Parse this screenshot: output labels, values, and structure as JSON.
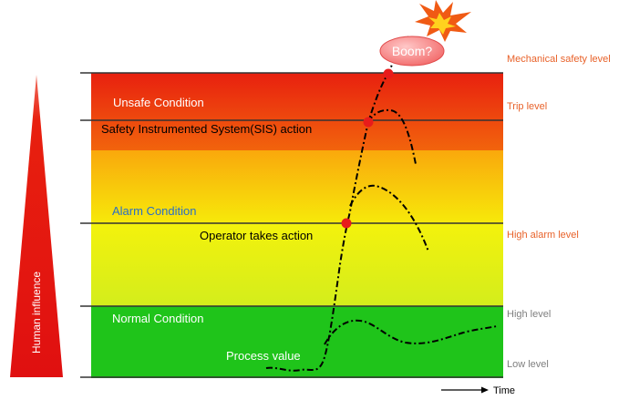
{
  "zones": {
    "unsafe": "Unsafe Condition",
    "alarm": "Alarm Condition",
    "normal": "Normal Condition"
  },
  "annotations": {
    "sis_action": "Safety Instrumented System(SIS) action",
    "operator_action": "Operator takes action",
    "process_value": "Process value",
    "boom": "Boom?"
  },
  "levels": {
    "mechanical": "Mechanical safety level",
    "trip": "Trip level",
    "high_alarm": "High alarm level",
    "high": "High level",
    "low": "Low level"
  },
  "axes": {
    "y": "Human influence",
    "x": "Time"
  },
  "colors": {
    "unsafe_top": "#e8200f",
    "unsafe_bottom": "#fba40a",
    "alarm_top": "#fbb40c",
    "alarm_bottom": "#f6f60a",
    "yellow_top": "#f4f20c",
    "yellow_bottom": "#d3ed1c",
    "normal": "#1fc41a",
    "level_label_orange": "#e8622a",
    "level_label_gray": "#7f7f7f",
    "alarm_label_blue": "#2a6ec6",
    "event_marker": "#e81b1b",
    "human_influence_triangle": "#e8200f"
  }
}
